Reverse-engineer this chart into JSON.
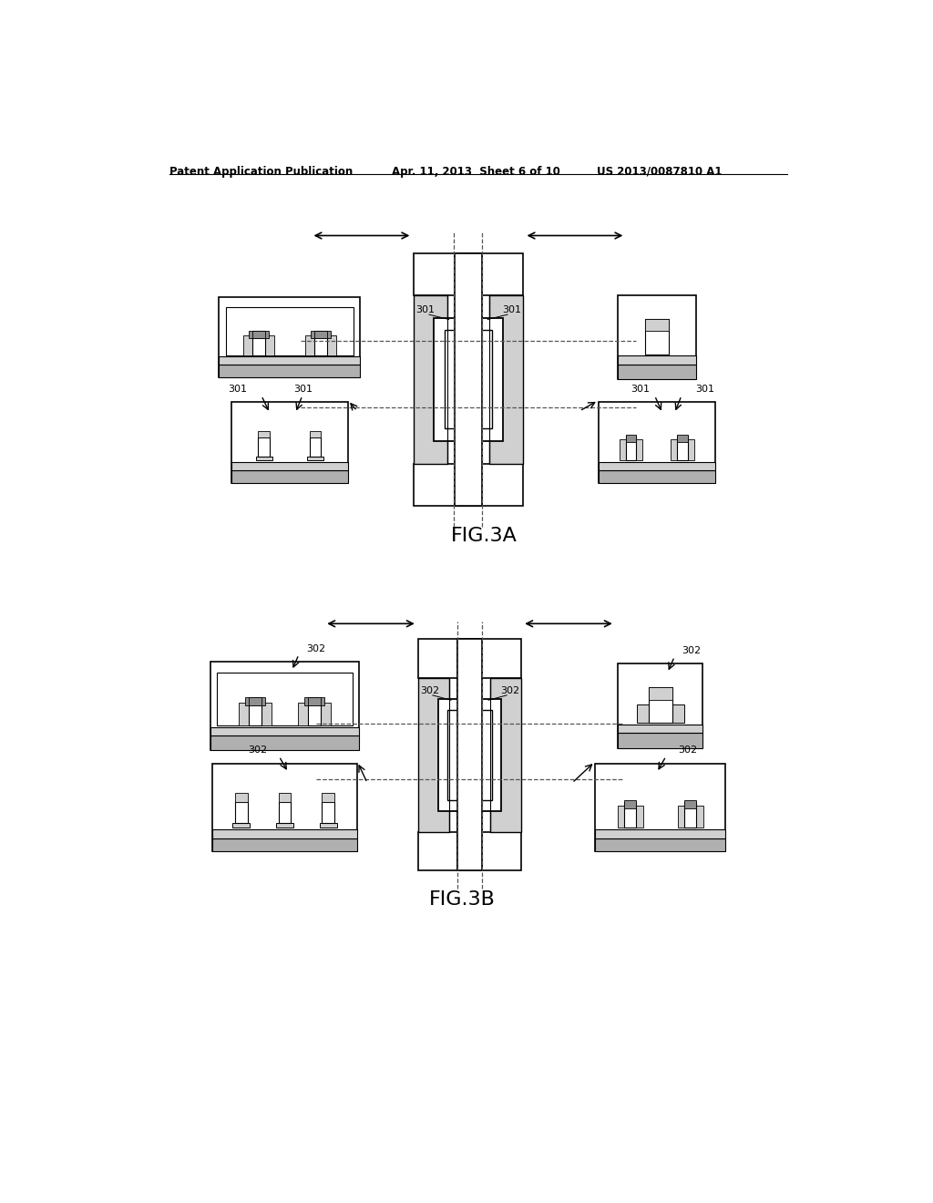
{
  "bg_color": "#ffffff",
  "lc": "#000000",
  "header_left": "Patent Application Publication",
  "header_mid": "Apr. 11, 2013  Sheet 6 of 10",
  "header_right": "US 2013/0087810 A1",
  "fig3a_label": "FIG.3A",
  "fig3b_label": "FIG.3B",
  "gray1": "#b0b0b0",
  "gray2": "#d0d0d0",
  "gray3": "#909090",
  "light_fill": "#f5f5f5"
}
